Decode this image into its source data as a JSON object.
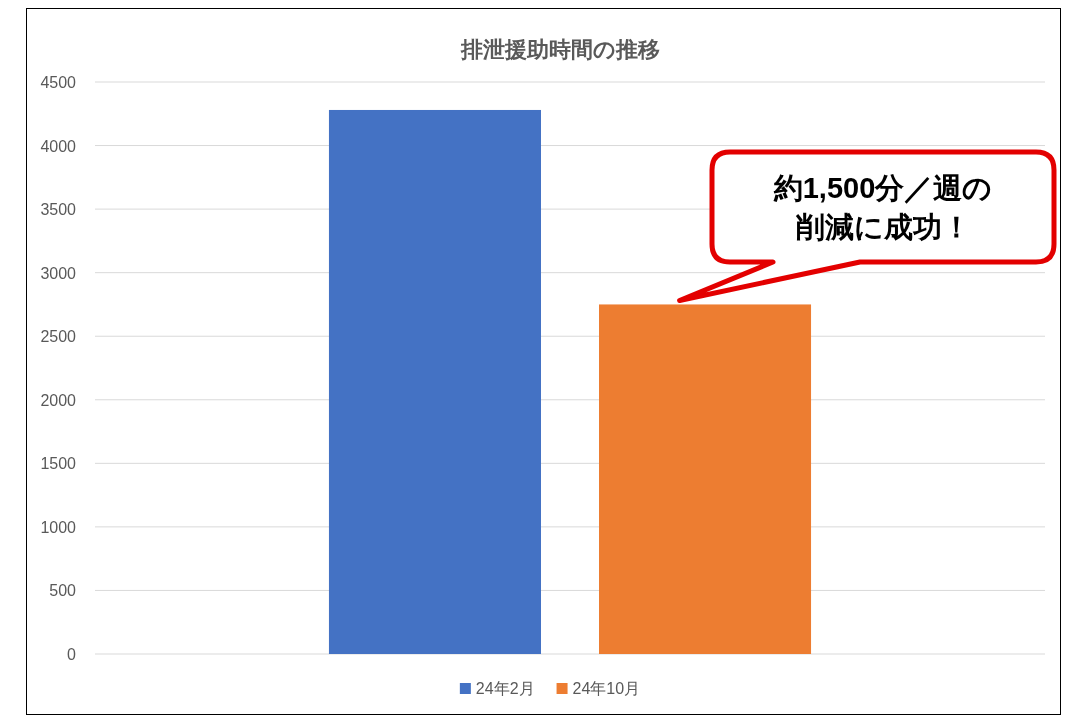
{
  "chart_data": {
    "type": "bar",
    "title": "排泄援助時間の推移",
    "categories": [
      null
    ],
    "series": [
      {
        "name": "24年2月",
        "color": "#4472c4",
        "values": [
          4280
        ]
      },
      {
        "name": "24年10月",
        "color": "#ed7d31",
        "values": [
          2750
        ]
      }
    ],
    "ylim": [
      0,
      4500
    ],
    "yticks": [
      0,
      500,
      1000,
      1500,
      2000,
      2500,
      3000,
      3500,
      4000,
      4500
    ],
    "grid": "y",
    "legend": "bottom",
    "tick_labels": "y",
    "annotations": [
      "約1,500分／週の",
      "削減に成功！"
    ]
  }
}
